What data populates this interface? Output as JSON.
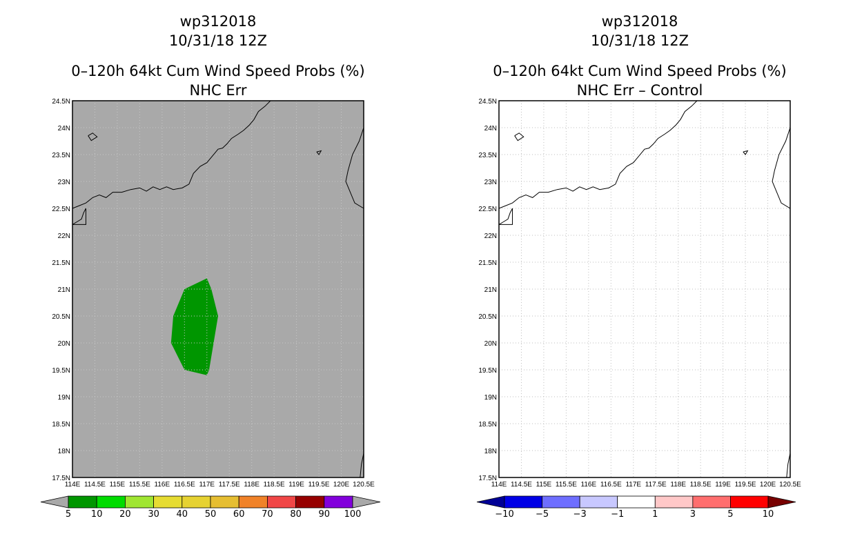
{
  "panels": [
    {
      "id": "left",
      "title_lines": [
        "wp312018",
        "10/31/18 12Z",
        "0–120h 64kt Cum Wind Speed Probs (%)",
        "NHC Err"
      ],
      "background": "#a9a9a9",
      "region_color": "#009600",
      "colorbar": {
        "labels": [
          "5",
          "10",
          "20",
          "30",
          "40",
          "50",
          "60",
          "70",
          "80",
          "90",
          "100"
        ],
        "colors": [
          "#009600",
          "#00dc00",
          "#a0e632",
          "#e6dc32",
          "#e6d232",
          "#e6be32",
          "#f08228",
          "#f04646",
          "#960000",
          "#8200dc"
        ],
        "under_color": "#a9a9a9",
        "over_color": "#a9a9a9"
      }
    },
    {
      "id": "right",
      "title_lines": [
        "wp312018",
        "10/31/18 12Z",
        "0–120h 64kt Cum Wind Speed Probs (%)",
        "NHC Err – Control"
      ],
      "background": "#ffffff",
      "colorbar": {
        "labels": [
          "−10",
          "−5",
          "−3",
          "−1",
          "1",
          "3",
          "5",
          "10"
        ],
        "colors": [
          "#0000e6",
          "#6e6eff",
          "#c8c8ff",
          "#ffffff",
          "#ffc8c8",
          "#ff6e6e",
          "#ff0000"
        ],
        "under_color": "#000096",
        "over_color": "#780000"
      }
    }
  ],
  "axes": {
    "lon_ticks": [
      "114E",
      "114.5E",
      "115E",
      "115.5E",
      "116E",
      "116.5E",
      "117E",
      "117.5E",
      "118E",
      "118.5E",
      "119E",
      "119.5E",
      "120E",
      "120.5E"
    ],
    "lat_ticks": [
      "17.5N",
      "18N",
      "18.5N",
      "19N",
      "19.5N",
      "20N",
      "20.5N",
      "21N",
      "21.5N",
      "22N",
      "22.5N",
      "23N",
      "23.5N",
      "24N",
      "24.5N"
    ],
    "lon_range": [
      114,
      120.5
    ],
    "lat_range": [
      17.5,
      24.5
    ]
  },
  "probability_region": {
    "polygon": [
      [
        116.5,
        21.0
      ],
      [
        117.0,
        21.2
      ],
      [
        117.1,
        21.0
      ],
      [
        117.25,
        20.5
      ],
      [
        117.15,
        20.0
      ],
      [
        117.05,
        19.5
      ],
      [
        117.0,
        19.4
      ],
      [
        116.5,
        19.5
      ],
      [
        116.2,
        20.0
      ],
      [
        116.25,
        20.5
      ],
      [
        116.4,
        20.8
      ]
    ]
  }
}
